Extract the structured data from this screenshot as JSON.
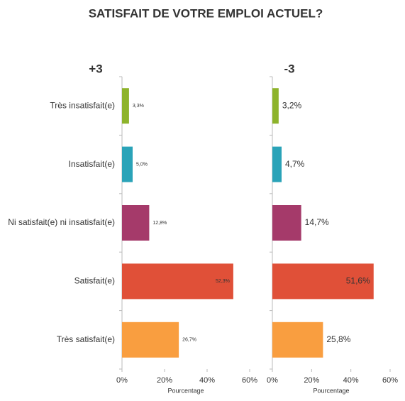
{
  "title": "SATISFAIT DE VOTRE EMPLOI ACTUEL?",
  "chart_data": [
    {
      "type": "bar",
      "title": "+3",
      "xlabel": "Pourcentage",
      "categories": [
        "Très insatisfait(e)",
        "Insatisfait(e)",
        "Ni satisfait(e) ni insatisfait(e)",
        "Satisfait(e)",
        "Très satisfait(e)"
      ],
      "values": [
        3.3,
        5.0,
        12.8,
        52.3,
        26.7
      ],
      "value_labels": [
        "3,3%",
        "5,0%",
        "12,8%",
        "52,3%",
        "26,7%"
      ],
      "colors": [
        "#8db32b",
        "#2aa3b8",
        "#a53a6a",
        "#e05038",
        "#f99e40"
      ],
      "xlim": [
        0,
        60
      ],
      "xticks": [
        {
          "value": 0,
          "label": "0%"
        },
        {
          "value": 20,
          "label": "20%"
        },
        {
          "value": 40,
          "label": "40%"
        },
        {
          "value": 60,
          "label": "60%"
        }
      ]
    },
    {
      "type": "bar",
      "title": "-3",
      "xlabel": "Pourcentage",
      "values": [
        3.2,
        4.7,
        14.7,
        51.6,
        25.8
      ],
      "value_labels": [
        "3,2%",
        "4,7%",
        "14,7%",
        "51,6%",
        "25,8%"
      ],
      "colors": [
        "#8db32b",
        "#2aa3b8",
        "#a53a6a",
        "#e05038",
        "#f99e40"
      ],
      "xlim": [
        0,
        60
      ],
      "xticks": [
        {
          "value": 0,
          "label": "0%"
        },
        {
          "value": 20,
          "label": "20%"
        },
        {
          "value": 40,
          "label": "40%"
        },
        {
          "value": 60,
          "label": "60%"
        }
      ]
    }
  ]
}
